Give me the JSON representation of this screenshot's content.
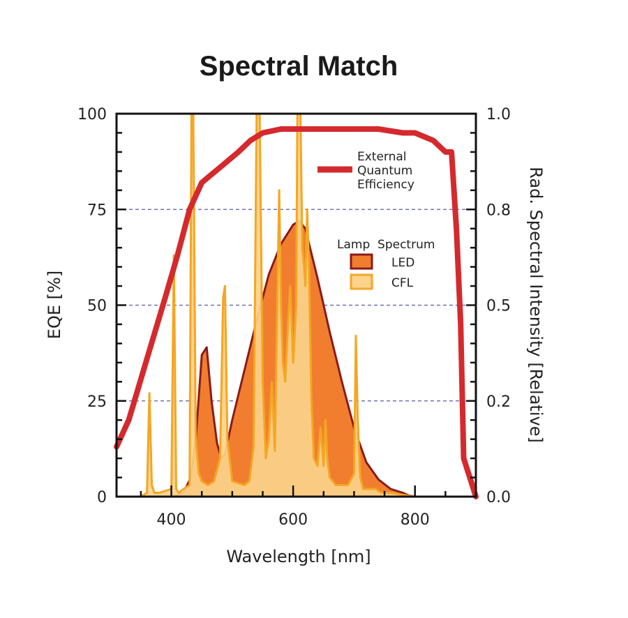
{
  "chart_data": {
    "type": "line",
    "title": "Spectral Match",
    "xlabel": "Wavelength [nm]",
    "ylabel_left": "EQE [%]",
    "ylabel_right": "Rad. Spectral Intensity [Relative]",
    "xlim": [
      310,
      900
    ],
    "ylim_left": [
      0,
      100
    ],
    "ylim_right": [
      0,
      1
    ],
    "x_ticks": [
      400,
      600,
      800
    ],
    "y_ticks_left": [
      0,
      25,
      50,
      75,
      100
    ],
    "y_ticks_left_labels": [
      "0",
      "25",
      "50",
      "75",
      "100"
    ],
    "y_ticks_right_labels": [
      "0.0",
      "0.2",
      "0.5",
      "0.8",
      "1.0"
    ],
    "grid": "dashed horizontal lines at 25, 50, 75",
    "colors": {
      "eqe": "#d42a2e",
      "led": "#f07e2e",
      "led_edge": "#8b1a1a",
      "cfl": "#fbd38b",
      "cfl_edge": "#f5a623",
      "grid": "#5a5aa8"
    },
    "legend": {
      "eqe": [
        "External",
        "Quantum",
        "Efficiency"
      ],
      "lamp_title": "Lamp  Spectrum",
      "led": "LED",
      "cfl": "CFL"
    },
    "series": [
      {
        "name": "External Quantum Efficiency",
        "axis": "left",
        "x": [
          310,
          330,
          360,
          390,
          410,
          430,
          450,
          480,
          510,
          530,
          550,
          580,
          610,
          650,
          700,
          740,
          780,
          800,
          830,
          850,
          860,
          868,
          875,
          880,
          890,
          900
        ],
        "y": [
          13,
          20,
          36,
          52,
          63,
          75,
          82,
          86,
          90,
          93,
          95,
          96,
          96,
          96,
          96,
          96,
          95,
          95,
          93,
          90,
          90,
          70,
          45,
          10,
          5,
          0
        ]
      },
      {
        "name": "LED",
        "axis": "right",
        "x": [
          350,
          400,
          420,
          432,
          440,
          450,
          458,
          466,
          475,
          482,
          488,
          500,
          520,
          540,
          560,
          580,
          600,
          610,
          620,
          640,
          660,
          680,
          700,
          720,
          740,
          760,
          780,
          790,
          800
        ],
        "y": [
          0,
          0,
          0.01,
          0.05,
          0.15,
          0.37,
          0.39,
          0.25,
          0.14,
          0.1,
          0.11,
          0.2,
          0.33,
          0.46,
          0.58,
          0.66,
          0.71,
          0.72,
          0.7,
          0.57,
          0.43,
          0.3,
          0.18,
          0.09,
          0.045,
          0.02,
          0.01,
          0.003,
          0
        ]
      },
      {
        "name": "CFL",
        "axis": "right",
        "x": [
          350,
          360,
          364,
          368,
          372,
          380,
          400,
          404,
          408,
          412,
          420,
          430,
          433,
          436,
          440,
          445,
          450,
          460,
          470,
          480,
          485,
          488,
          492,
          500,
          520,
          528,
          535,
          540,
          545,
          550,
          555,
          560,
          565,
          570,
          577,
          580,
          583,
          587,
          590,
          595,
          600,
          605,
          607,
          610,
          612,
          615,
          618,
          620,
          623,
          626,
          630,
          634,
          640,
          645,
          650,
          653,
          656,
          660,
          670,
          680,
          690,
          700,
          703,
          706,
          710,
          715,
          725,
          735,
          745,
          760,
          780,
          800
        ],
        "y": [
          0,
          0.01,
          0.27,
          0.03,
          0.01,
          0.01,
          0.02,
          0.63,
          0.02,
          0.01,
          0.02,
          0.03,
          1.0,
          1.0,
          0.15,
          0.06,
          0.04,
          0.03,
          0.04,
          0.1,
          0.52,
          0.55,
          0.15,
          0.04,
          0.03,
          0.04,
          0.13,
          1.0,
          1.0,
          0.3,
          0.1,
          0.15,
          0.3,
          0.12,
          0.8,
          0.5,
          0.35,
          0.3,
          0.4,
          0.55,
          0.35,
          0.5,
          1.0,
          1.0,
          1.0,
          0.65,
          0.6,
          0.55,
          0.75,
          0.6,
          0.25,
          0.1,
          0.08,
          0.18,
          0.08,
          0.2,
          0.1,
          0.05,
          0.03,
          0.03,
          0.03,
          0.06,
          0.42,
          0.2,
          0.05,
          0.02,
          0.02,
          0.02,
          0.01,
          0.01,
          0.005,
          0
        ]
      }
    ]
  }
}
